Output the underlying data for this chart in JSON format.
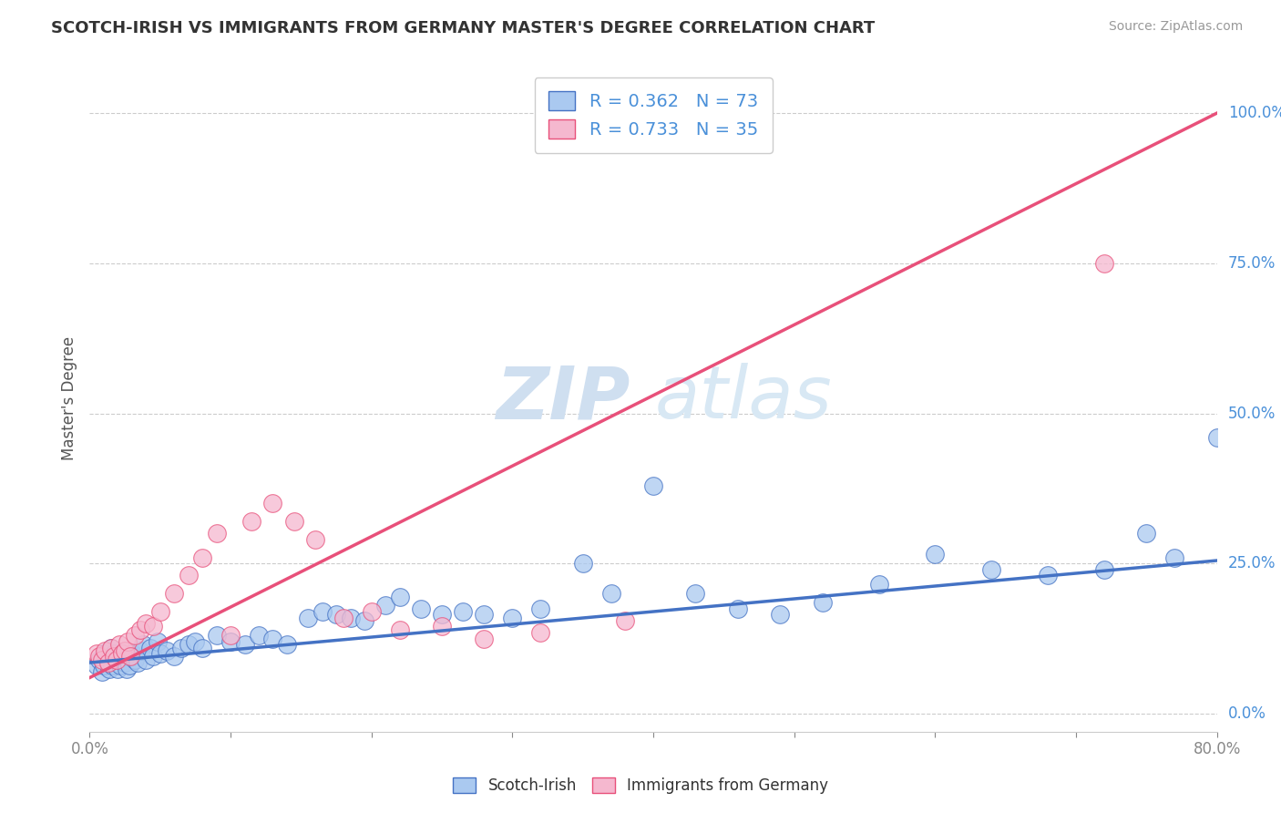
{
  "title": "SCOTCH-IRISH VS IMMIGRANTS FROM GERMANY MASTER'S DEGREE CORRELATION CHART",
  "source_text": "Source: ZipAtlas.com",
  "ylabel": "Master's Degree",
  "x_min": 0.0,
  "x_max": 0.8,
  "y_min": -0.03,
  "y_max": 1.08,
  "y_ticks_right": [
    0.0,
    0.25,
    0.5,
    0.75,
    1.0
  ],
  "y_tick_labels_right": [
    "0.0%",
    "25.0%",
    "50.0%",
    "75.0%",
    "100.0%"
  ],
  "blue_R": 0.362,
  "blue_N": 73,
  "pink_R": 0.733,
  "pink_N": 35,
  "blue_color": "#aac9f0",
  "pink_color": "#f5b8cf",
  "blue_line_color": "#4472c4",
  "pink_line_color": "#e8507a",
  "legend_label_blue": "Scotch-Irish",
  "legend_label_pink": "Immigrants from Germany",
  "background_color": "#ffffff",
  "grid_color": "#cccccc",
  "title_color": "#333333",
  "blue_scatter_x": [
    0.005,
    0.007,
    0.009,
    0.01,
    0.01,
    0.012,
    0.013,
    0.014,
    0.015,
    0.015,
    0.016,
    0.017,
    0.018,
    0.019,
    0.02,
    0.021,
    0.022,
    0.023,
    0.024,
    0.025,
    0.026,
    0.027,
    0.028,
    0.03,
    0.032,
    0.034,
    0.036,
    0.038,
    0.04,
    0.043,
    0.045,
    0.048,
    0.05,
    0.055,
    0.06,
    0.065,
    0.07,
    0.075,
    0.08,
    0.09,
    0.1,
    0.11,
    0.12,
    0.13,
    0.14,
    0.155,
    0.165,
    0.175,
    0.185,
    0.195,
    0.21,
    0.22,
    0.235,
    0.25,
    0.265,
    0.28,
    0.3,
    0.32,
    0.35,
    0.37,
    0.4,
    0.43,
    0.46,
    0.49,
    0.52,
    0.56,
    0.6,
    0.64,
    0.68,
    0.72,
    0.75,
    0.77,
    0.8
  ],
  "blue_scatter_y": [
    0.08,
    0.09,
    0.07,
    0.1,
    0.08,
    0.09,
    0.085,
    0.075,
    0.095,
    0.11,
    0.08,
    0.1,
    0.09,
    0.085,
    0.075,
    0.095,
    0.08,
    0.1,
    0.09,
    0.085,
    0.075,
    0.095,
    0.08,
    0.1,
    0.09,
    0.085,
    0.105,
    0.115,
    0.09,
    0.11,
    0.095,
    0.12,
    0.1,
    0.105,
    0.095,
    0.11,
    0.115,
    0.12,
    0.11,
    0.13,
    0.12,
    0.115,
    0.13,
    0.125,
    0.115,
    0.16,
    0.17,
    0.165,
    0.16,
    0.155,
    0.18,
    0.195,
    0.175,
    0.165,
    0.17,
    0.165,
    0.16,
    0.175,
    0.25,
    0.2,
    0.38,
    0.2,
    0.175,
    0.165,
    0.185,
    0.215,
    0.265,
    0.24,
    0.23,
    0.24,
    0.3,
    0.26,
    0.46
  ],
  "pink_scatter_x": [
    0.005,
    0.007,
    0.009,
    0.011,
    0.013,
    0.015,
    0.017,
    0.019,
    0.021,
    0.023,
    0.025,
    0.027,
    0.029,
    0.032,
    0.036,
    0.04,
    0.045,
    0.05,
    0.06,
    0.07,
    0.08,
    0.09,
    0.1,
    0.115,
    0.13,
    0.145,
    0.16,
    0.18,
    0.2,
    0.22,
    0.25,
    0.28,
    0.32,
    0.38,
    0.72
  ],
  "pink_scatter_y": [
    0.1,
    0.095,
    0.09,
    0.105,
    0.085,
    0.11,
    0.095,
    0.09,
    0.115,
    0.1,
    0.105,
    0.12,
    0.095,
    0.13,
    0.14,
    0.15,
    0.145,
    0.17,
    0.2,
    0.23,
    0.26,
    0.3,
    0.13,
    0.32,
    0.35,
    0.32,
    0.29,
    0.16,
    0.17,
    0.14,
    0.145,
    0.125,
    0.135,
    0.155,
    0.75
  ],
  "blue_line_x0": 0.0,
  "blue_line_y0": 0.085,
  "blue_line_x1": 0.8,
  "blue_line_y1": 0.255,
  "pink_line_x0": 0.0,
  "pink_line_y0": 0.06,
  "pink_line_x1": 0.8,
  "pink_line_y1": 1.0
}
